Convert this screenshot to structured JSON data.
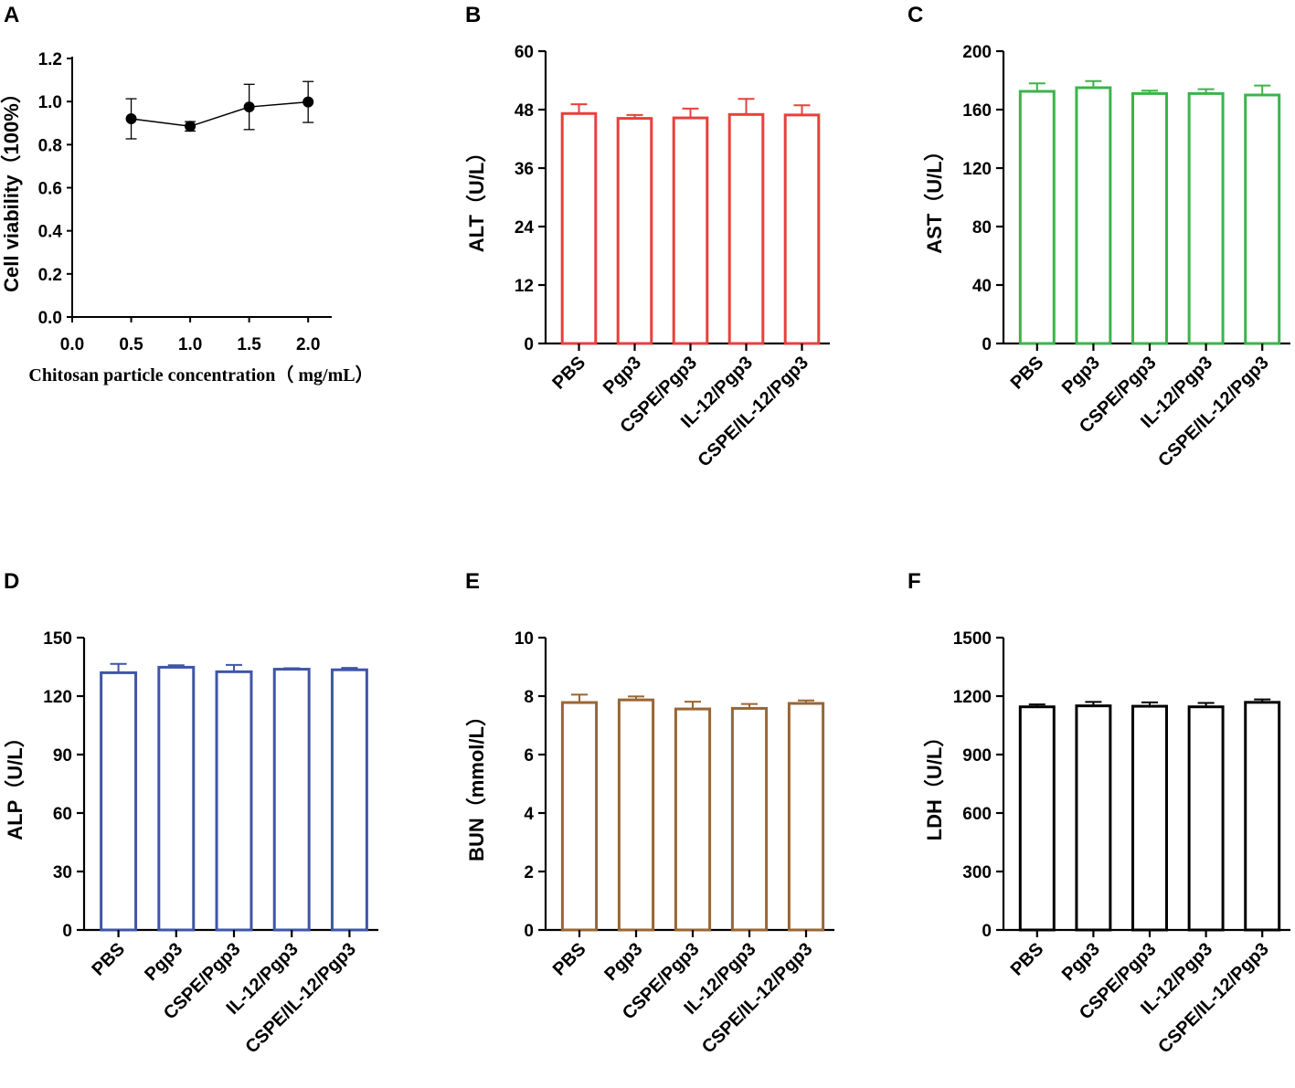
{
  "figure": {
    "categories": [
      "PBS",
      "Pgp3",
      "CSPE/Pgp3",
      "IL-12/Pgp3",
      "CSPE/IL-12/Pgp3"
    ]
  },
  "chart_data": [
    {
      "panel": "A",
      "type": "line",
      "title": "",
      "xlabel": "Chitosan particle concentration（ mg/mL）",
      "ylabel": "Cell viability（100%）",
      "xlim": [
        0,
        2.2
      ],
      "ylim": [
        0,
        1.2
      ],
      "xticks": [
        "0.0",
        "0.5",
        "1.0",
        "1.5",
        "2.0"
      ],
      "yticks": [
        "0.0",
        "0.2",
        "0.4",
        "0.6",
        "0.8",
        "1.0",
        "1.2"
      ],
      "x": [
        0.5,
        1.0,
        1.5,
        2.0
      ],
      "values": [
        0.92,
        0.885,
        0.975,
        0.998
      ],
      "errors": [
        0.093,
        0.022,
        0.105,
        0.095
      ],
      "color": "#000000"
    },
    {
      "panel": "B",
      "type": "bar",
      "title": "",
      "xlabel": "",
      "ylabel": "ALT（U/L）",
      "categories": [
        "PBS",
        "Pgp3",
        "CSPE/Pgp3",
        "IL-12/Pgp3",
        "CSPE/IL-12/Pgp3"
      ],
      "ylim": [
        0,
        60
      ],
      "yticks": [
        "0",
        "12",
        "24",
        "36",
        "48",
        "60"
      ],
      "values": [
        47.2,
        46.2,
        46.3,
        47.0,
        46.9
      ],
      "errors": [
        1.9,
        0.7,
        1.9,
        3.2,
        2.0
      ],
      "color": "#e8403c"
    },
    {
      "panel": "C",
      "type": "bar",
      "title": "",
      "xlabel": "",
      "ylabel": "AST（U/L）",
      "categories": [
        "PBS",
        "Pgp3",
        "CSPE/Pgp3",
        "IL-12/Pgp3",
        "CSPE/IL-12/Pgp3"
      ],
      "ylim": [
        0,
        200
      ],
      "yticks": [
        "0",
        "40",
        "80",
        "120",
        "160",
        "200"
      ],
      "values": [
        172.5,
        175.0,
        171.0,
        171.0,
        170.0
      ],
      "errors": [
        5.5,
        4.5,
        2.0,
        3.0,
        6.5
      ],
      "color": "#3bb44a"
    },
    {
      "panel": "D",
      "type": "bar",
      "title": "",
      "xlabel": "",
      "ylabel": "ALP（U/L）",
      "categories": [
        "PBS",
        "Pgp3",
        "CSPE/Pgp3",
        "IL-12/Pgp3",
        "CSPE/IL-12/Pgp3"
      ],
      "ylim": [
        0,
        150
      ],
      "yticks": [
        "0",
        "30",
        "60",
        "90",
        "120",
        "150"
      ],
      "values": [
        132.0,
        134.8,
        132.5,
        133.8,
        133.5
      ],
      "errors": [
        4.5,
        1.0,
        3.5,
        0.5,
        1.0
      ],
      "color": "#3f55a8"
    },
    {
      "panel": "E",
      "type": "bar",
      "title": "",
      "xlabel": "",
      "ylabel": "BUN（mmol/L）",
      "categories": [
        "PBS",
        "Pgp3",
        "CSPE/Pgp3",
        "IL-12/Pgp3",
        "CSPE/IL-12/Pgp3"
      ],
      "ylim": [
        0,
        10
      ],
      "yticks": [
        "0",
        "2",
        "4",
        "6",
        "8",
        "10"
      ],
      "values": [
        7.78,
        7.87,
        7.56,
        7.58,
        7.75
      ],
      "errors": [
        0.27,
        0.12,
        0.25,
        0.15,
        0.1
      ],
      "color": "#996633"
    },
    {
      "panel": "F",
      "type": "bar",
      "title": "",
      "xlabel": "",
      "ylabel": "LDH（U/L）",
      "categories": [
        "PBS",
        "Pgp3",
        "CSPE/Pgp3",
        "IL-12/Pgp3",
        "CSPE/IL-12/Pgp3"
      ],
      "ylim": [
        0,
        1500
      ],
      "yticks": [
        "0",
        "300",
        "600",
        "900",
        "1200",
        "1500"
      ],
      "values": [
        1145,
        1150,
        1148,
        1145,
        1168
      ],
      "errors": [
        12,
        20,
        20,
        20,
        15
      ],
      "color": "#000000"
    }
  ]
}
